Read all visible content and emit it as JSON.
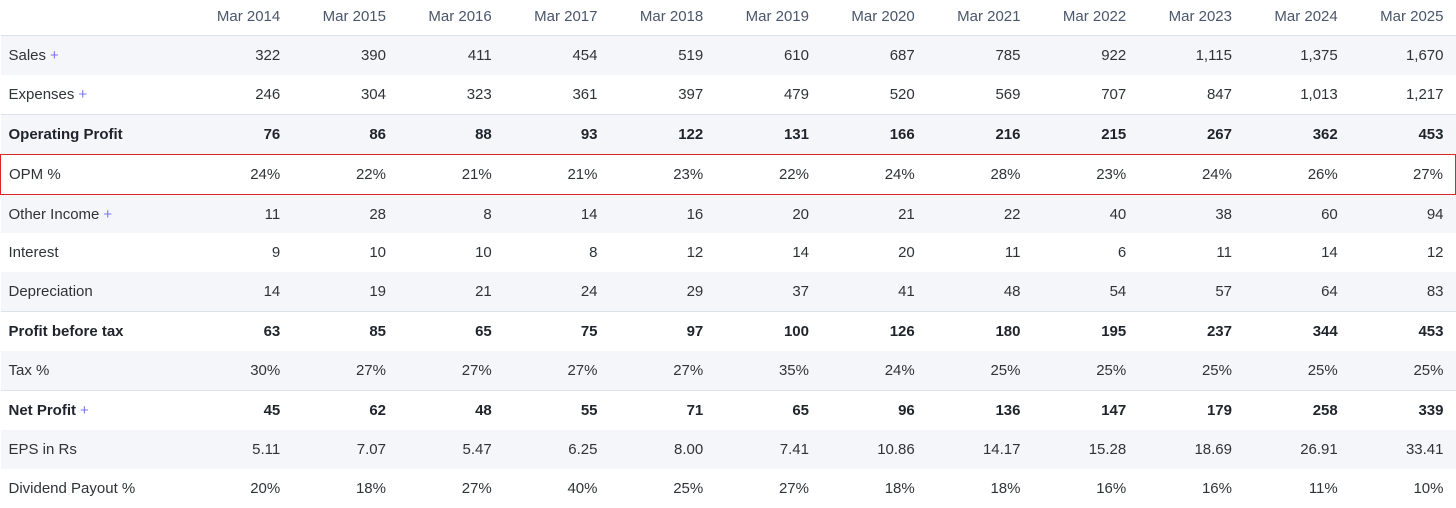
{
  "table": {
    "columns": [
      "Mar 2014",
      "Mar 2015",
      "Mar 2016",
      "Mar 2017",
      "Mar 2018",
      "Mar 2019",
      "Mar 2020",
      "Mar 2021",
      "Mar 2022",
      "Mar 2023",
      "Mar 2024",
      "Mar 2025"
    ],
    "expand_symbol": "+",
    "rows": [
      {
        "label": "Sales",
        "expandable": true,
        "bold": false,
        "highlighted": false,
        "values": [
          "322",
          "390",
          "411",
          "454",
          "519",
          "610",
          "687",
          "785",
          "922",
          "1,115",
          "1,375",
          "1,670"
        ]
      },
      {
        "label": "Expenses",
        "expandable": true,
        "bold": false,
        "highlighted": false,
        "values": [
          "246",
          "304",
          "323",
          "361",
          "397",
          "479",
          "520",
          "569",
          "707",
          "847",
          "1,013",
          "1,217"
        ]
      },
      {
        "label": "Operating Profit",
        "expandable": false,
        "bold": true,
        "highlighted": false,
        "values": [
          "76",
          "86",
          "88",
          "93",
          "122",
          "131",
          "166",
          "216",
          "215",
          "267",
          "362",
          "453"
        ]
      },
      {
        "label": "OPM %",
        "expandable": false,
        "bold": false,
        "highlighted": true,
        "values": [
          "24%",
          "22%",
          "21%",
          "21%",
          "23%",
          "22%",
          "24%",
          "28%",
          "23%",
          "24%",
          "26%",
          "27%"
        ]
      },
      {
        "label": "Other Income",
        "expandable": true,
        "bold": false,
        "highlighted": false,
        "values": [
          "11",
          "28",
          "8",
          "14",
          "16",
          "20",
          "21",
          "22",
          "40",
          "38",
          "60",
          "94"
        ]
      },
      {
        "label": "Interest",
        "expandable": false,
        "bold": false,
        "highlighted": false,
        "values": [
          "9",
          "10",
          "10",
          "8",
          "12",
          "14",
          "20",
          "11",
          "6",
          "11",
          "14",
          "12"
        ]
      },
      {
        "label": "Depreciation",
        "expandable": false,
        "bold": false,
        "highlighted": false,
        "values": [
          "14",
          "19",
          "21",
          "24",
          "29",
          "37",
          "41",
          "48",
          "54",
          "57",
          "64",
          "83"
        ]
      },
      {
        "label": "Profit before tax",
        "expandable": false,
        "bold": true,
        "highlighted": false,
        "values": [
          "63",
          "85",
          "65",
          "75",
          "97",
          "100",
          "126",
          "180",
          "195",
          "237",
          "344",
          "453"
        ]
      },
      {
        "label": "Tax %",
        "expandable": false,
        "bold": false,
        "highlighted": false,
        "values": [
          "30%",
          "27%",
          "27%",
          "27%",
          "27%",
          "35%",
          "24%",
          "25%",
          "25%",
          "25%",
          "25%",
          "25%"
        ]
      },
      {
        "label": "Net Profit",
        "expandable": true,
        "bold": true,
        "highlighted": false,
        "values": [
          "45",
          "62",
          "48",
          "55",
          "71",
          "65",
          "96",
          "136",
          "147",
          "179",
          "258",
          "339"
        ]
      },
      {
        "label": "EPS in Rs",
        "expandable": false,
        "bold": false,
        "highlighted": false,
        "values": [
          "5.11",
          "7.07",
          "5.47",
          "6.25",
          "8.00",
          "7.41",
          "10.86",
          "14.17",
          "15.28",
          "18.69",
          "26.91",
          "33.41"
        ]
      },
      {
        "label": "Dividend Payout %",
        "expandable": false,
        "bold": false,
        "highlighted": false,
        "values": [
          "20%",
          "18%",
          "27%",
          "40%",
          "25%",
          "27%",
          "18%",
          "18%",
          "16%",
          "16%",
          "11%",
          "10%"
        ]
      }
    ]
  },
  "colors": {
    "accent": "#7b74ec",
    "highlight_border": "#dc2626",
    "stripe": "#f5f6fa",
    "separator": "#dce3ea",
    "header_text": "#4a566b",
    "text": "#2f3337"
  }
}
